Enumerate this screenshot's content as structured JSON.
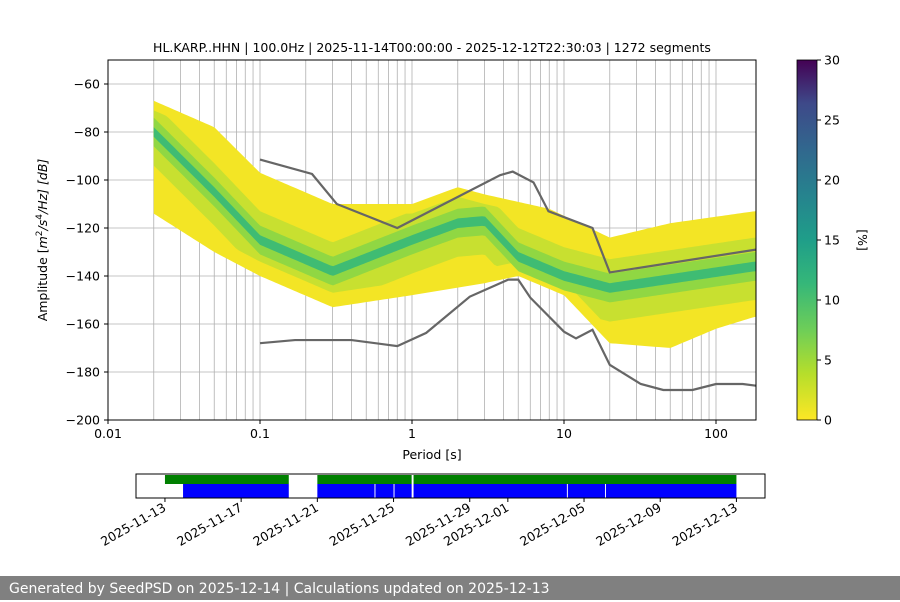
{
  "chart_data": {
    "type": "heatmap",
    "title": "HL.KARP..HHN | 100.0Hz | 2025-11-14T00:00:00 - 2025-12-12T22:30:03 | 1272 segments",
    "xlabel": "Period [s]",
    "ylabel": "Amplitude [m²/s⁴/Hz] [dB]",
    "ylabel_parts": {
      "pre": "Amplitude [",
      "m": "m",
      "sup1": "2",
      "mid": "/s",
      "sup2": "4",
      "post": "/Hz] [dB]"
    },
    "xscale": "log",
    "xlim": [
      0.01,
      183
    ],
    "ylim": [
      -200,
      -50
    ],
    "xticks": [
      {
        "v": 0.01,
        "label": "0.01"
      },
      {
        "v": 0.1,
        "label": "0.1"
      },
      {
        "v": 1,
        "label": "1"
      },
      {
        "v": 10,
        "label": "10"
      },
      {
        "v": 100,
        "label": "100"
      }
    ],
    "yticks": [
      {
        "v": -60,
        "label": "−60"
      },
      {
        "v": -80,
        "label": "−80"
      },
      {
        "v": -100,
        "label": "−100"
      },
      {
        "v": -120,
        "label": "−120"
      },
      {
        "v": -140,
        "label": "−140"
      },
      {
        "v": -160,
        "label": "−160"
      },
      {
        "v": -180,
        "label": "−180"
      },
      {
        "v": -200,
        "label": "−200"
      }
    ],
    "grid": true,
    "histogram_approx": {
      "top": [
        [
          0.02,
          -67
        ],
        [
          0.05,
          -78
        ],
        [
          0.1,
          -97
        ],
        [
          0.3,
          -110
        ],
        [
          1,
          -110
        ],
        [
          2,
          -103
        ],
        [
          3,
          -106
        ],
        [
          8,
          -112
        ],
        [
          20,
          -124
        ],
        [
          50,
          -118
        ],
        [
          180,
          -113
        ]
      ],
      "bottom": [
        [
          0.02,
          -114
        ],
        [
          0.05,
          -130
        ],
        [
          0.1,
          -140
        ],
        [
          0.3,
          -153
        ],
        [
          1,
          -148
        ],
        [
          3,
          -143
        ],
        [
          5,
          -140
        ],
        [
          10,
          -148
        ],
        [
          20,
          -168
        ],
        [
          50,
          -170
        ],
        [
          100,
          -162
        ],
        [
          180,
          -157
        ]
      ],
      "mode": [
        [
          0.02,
          -80
        ],
        [
          0.05,
          -105
        ],
        [
          0.1,
          -125
        ],
        [
          0.3,
          -138
        ],
        [
          1,
          -125
        ],
        [
          2,
          -118
        ],
        [
          3,
          -117
        ],
        [
          5,
          -132
        ],
        [
          10,
          -140
        ],
        [
          20,
          -145
        ],
        [
          180,
          -136
        ]
      ]
    },
    "series": [
      {
        "name": "NHNM",
        "color": "#666666",
        "points": [
          [
            0.1,
            -91.5
          ],
          [
            0.22,
            -97.5
          ],
          [
            0.32,
            -110
          ],
          [
            0.8,
            -120
          ],
          [
            3.8,
            -98
          ],
          [
            4.6,
            -96.5
          ],
          [
            6.3,
            -101
          ],
          [
            7.9,
            -113
          ],
          [
            15.4,
            -120
          ],
          [
            20,
            -138.5
          ],
          [
            183,
            -129
          ]
        ]
      },
      {
        "name": "NLNM",
        "color": "#666666",
        "points": [
          [
            0.1,
            -168
          ],
          [
            0.17,
            -166.7
          ],
          [
            0.4,
            -166.7
          ],
          [
            0.8,
            -169.2
          ],
          [
            1.24,
            -163.7
          ],
          [
            2.4,
            -148.6
          ],
          [
            4.3,
            -141.5
          ],
          [
            5,
            -141.5
          ],
          [
            6,
            -149
          ],
          [
            10,
            -163.2
          ],
          [
            12,
            -166
          ],
          [
            15.4,
            -162.4
          ],
          [
            20,
            -177
          ],
          [
            32,
            -185
          ],
          [
            45,
            -187.5
          ],
          [
            70,
            -187.5
          ],
          [
            100,
            -185
          ],
          [
            150,
            -185
          ],
          [
            183,
            -185.7
          ]
        ]
      }
    ],
    "colorbar": {
      "label": "[%]",
      "range": [
        0,
        30
      ],
      "ticks": [
        "0",
        "5",
        "10",
        "15",
        "20",
        "25",
        "30"
      ]
    },
    "timeline": {
      "start_day": -1.52,
      "end_day": 31.5,
      "tick_labels": [
        {
          "d": 0,
          "label": "2025-11-13"
        },
        {
          "d": 4,
          "label": "2025-11-17"
        },
        {
          "d": 8,
          "label": "2025-11-21"
        },
        {
          "d": 12,
          "label": "2025-11-25"
        },
        {
          "d": 16,
          "label": "2025-11-29"
        },
        {
          "d": 18,
          "label": "2025-12-01"
        },
        {
          "d": 22,
          "label": "2025-12-05"
        },
        {
          "d": 26,
          "label": "2025-12-09"
        },
        {
          "d": 30,
          "label": "2025-12-13"
        }
      ],
      "green": [
        [
          0,
          6.5
        ],
        [
          8,
          12.95
        ],
        [
          13.05,
          30
        ]
      ],
      "blue": [
        [
          0.95,
          6.5
        ],
        [
          8,
          11
        ],
        [
          11.05,
          12
        ],
        [
          12.05,
          12.95
        ],
        [
          13.05,
          21.1
        ],
        [
          21.15,
          23.1
        ],
        [
          23.15,
          30
        ]
      ],
      "green_color": "#008000",
      "blue_color": "#0000ff"
    }
  },
  "footer": "Generated by SeedPSD on 2025-12-14 | Calculations updated on 2025-12-13"
}
